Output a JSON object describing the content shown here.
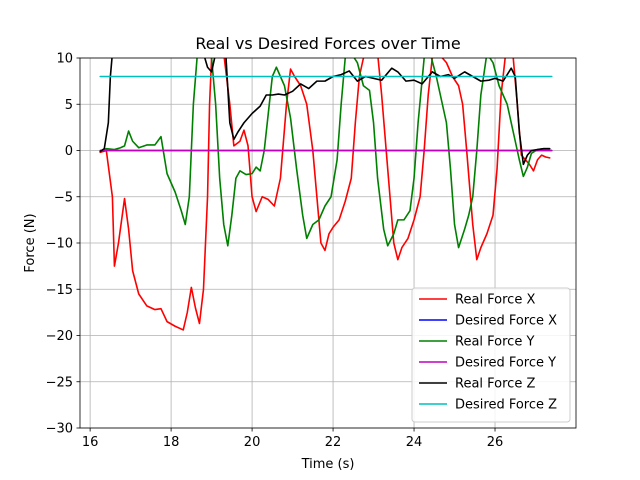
{
  "chart_data": {
    "type": "line",
    "title": "Real vs Desired Forces over Time",
    "xlabel": "Time (s)",
    "ylabel": "Force (N)",
    "xlim": [
      15.75,
      28.0
    ],
    "ylim": [
      -30,
      10
    ],
    "xticks": [
      16,
      18,
      20,
      22,
      24,
      26
    ],
    "yticks": [
      -30,
      -25,
      -20,
      -15,
      -10,
      -5,
      0,
      5,
      10
    ],
    "grid": true,
    "legend_position": "lower-right",
    "series": [
      {
        "name": "Real Force X",
        "color": "#ff0000",
        "points": [
          [
            16.25,
            -0.2
          ],
          [
            16.4,
            0.0
          ],
          [
            16.55,
            -5.0
          ],
          [
            16.6,
            -12.5
          ],
          [
            16.7,
            -10.0
          ],
          [
            16.85,
            -5.2
          ],
          [
            16.95,
            -8.5
          ],
          [
            17.05,
            -13.0
          ],
          [
            17.2,
            -15.5
          ],
          [
            17.4,
            -16.8
          ],
          [
            17.6,
            -17.2
          ],
          [
            17.75,
            -17.1
          ],
          [
            17.9,
            -18.5
          ],
          [
            18.1,
            -19.0
          ],
          [
            18.3,
            -19.4
          ],
          [
            18.4,
            -17.5
          ],
          [
            18.5,
            -14.8
          ],
          [
            18.6,
            -17.0
          ],
          [
            18.7,
            -18.7
          ],
          [
            18.8,
            -15.0
          ],
          [
            18.9,
            -5.0
          ],
          [
            18.95,
            5.0
          ],
          [
            19.0,
            10.0
          ],
          [
            19.1,
            10.5
          ],
          [
            19.2,
            10.5
          ],
          [
            19.3,
            10.5
          ],
          [
            19.45,
            5.0
          ],
          [
            19.55,
            0.5
          ],
          [
            19.7,
            1.0
          ],
          [
            19.8,
            2.2
          ],
          [
            19.9,
            0.5
          ],
          [
            20.0,
            -5.0
          ],
          [
            20.1,
            -6.6
          ],
          [
            20.25,
            -5.0
          ],
          [
            20.4,
            -5.3
          ],
          [
            20.55,
            -6.0
          ],
          [
            20.7,
            -3.0
          ],
          [
            20.85,
            5.0
          ],
          [
            20.95,
            8.8
          ],
          [
            21.05,
            8.0
          ],
          [
            21.2,
            7.0
          ],
          [
            21.35,
            5.0
          ],
          [
            21.5,
            0.0
          ],
          [
            21.6,
            -5.0
          ],
          [
            21.7,
            -10.0
          ],
          [
            21.8,
            -10.8
          ],
          [
            21.9,
            -9.0
          ],
          [
            22.0,
            -8.3
          ],
          [
            22.15,
            -7.5
          ],
          [
            22.3,
            -5.5
          ],
          [
            22.45,
            -3.0
          ],
          [
            22.55,
            3.0
          ],
          [
            22.65,
            8.0
          ],
          [
            22.75,
            10.0
          ],
          [
            22.9,
            10.5
          ],
          [
            23.1,
            10.5
          ],
          [
            23.2,
            6.0
          ],
          [
            23.35,
            -2.0
          ],
          [
            23.5,
            -10.0
          ],
          [
            23.6,
            -11.8
          ],
          [
            23.7,
            -10.5
          ],
          [
            23.85,
            -9.5
          ],
          [
            24.0,
            -7.5
          ],
          [
            24.15,
            -5.0
          ],
          [
            24.25,
            0.0
          ],
          [
            24.35,
            6.0
          ],
          [
            24.45,
            10.0
          ],
          [
            24.6,
            10.5
          ],
          [
            24.8,
            9.5
          ],
          [
            24.95,
            8.0
          ],
          [
            25.1,
            7.0
          ],
          [
            25.2,
            5.0
          ],
          [
            25.3,
            0.0
          ],
          [
            25.45,
            -8.0
          ],
          [
            25.55,
            -11.8
          ],
          [
            25.65,
            -10.5
          ],
          [
            25.8,
            -9.0
          ],
          [
            25.95,
            -7.0
          ],
          [
            26.05,
            -2.0
          ],
          [
            26.15,
            6.0
          ],
          [
            26.25,
            10.0
          ],
          [
            26.35,
            10.5
          ],
          [
            26.45,
            10.0
          ],
          [
            26.55,
            5.0
          ],
          [
            26.65,
            -0.5
          ],
          [
            26.75,
            -1.0
          ],
          [
            26.85,
            -1.5
          ],
          [
            26.95,
            -2.2
          ],
          [
            27.05,
            -1.0
          ],
          [
            27.15,
            -0.5
          ],
          [
            27.25,
            -0.7
          ],
          [
            27.35,
            -0.8
          ]
        ]
      },
      {
        "name": "Desired Force X",
        "color": "#0000ff",
        "points": [
          [
            16.25,
            0.0
          ],
          [
            27.4,
            0.0
          ]
        ]
      },
      {
        "name": "Real Force Y",
        "color": "#008000",
        "points": [
          [
            16.25,
            -0.1
          ],
          [
            16.4,
            0.2
          ],
          [
            16.6,
            0.1
          ],
          [
            16.75,
            0.3
          ],
          [
            16.85,
            0.5
          ],
          [
            16.95,
            2.1
          ],
          [
            17.05,
            1.0
          ],
          [
            17.2,
            0.3
          ],
          [
            17.4,
            0.6
          ],
          [
            17.6,
            0.6
          ],
          [
            17.75,
            1.5
          ],
          [
            17.9,
            -2.5
          ],
          [
            18.1,
            -4.5
          ],
          [
            18.25,
            -6.5
          ],
          [
            18.35,
            -8.0
          ],
          [
            18.45,
            -5.0
          ],
          [
            18.55,
            5.0
          ],
          [
            18.65,
            10.5
          ],
          [
            18.9,
            10.5
          ],
          [
            19.0,
            10.0
          ],
          [
            19.1,
            5.0
          ],
          [
            19.2,
            -3.0
          ],
          [
            19.3,
            -8.0
          ],
          [
            19.4,
            -10.3
          ],
          [
            19.5,
            -7.0
          ],
          [
            19.6,
            -3.0
          ],
          [
            19.7,
            -2.2
          ],
          [
            19.85,
            -2.6
          ],
          [
            20.0,
            -2.5
          ],
          [
            20.1,
            -1.8
          ],
          [
            20.2,
            -2.2
          ],
          [
            20.3,
            0.0
          ],
          [
            20.4,
            4.0
          ],
          [
            20.5,
            8.0
          ],
          [
            20.6,
            9.0
          ],
          [
            20.8,
            7.0
          ],
          [
            20.95,
            3.5
          ],
          [
            21.1,
            -2.0
          ],
          [
            21.25,
            -7.0
          ],
          [
            21.35,
            -9.5
          ],
          [
            21.5,
            -8.0
          ],
          [
            21.65,
            -7.5
          ],
          [
            21.8,
            -6.0
          ],
          [
            21.95,
            -5.0
          ],
          [
            22.1,
            -1.0
          ],
          [
            22.2,
            5.0
          ],
          [
            22.3,
            10.0
          ],
          [
            22.45,
            10.5
          ],
          [
            22.6,
            9.5
          ],
          [
            22.75,
            7.0
          ],
          [
            22.9,
            6.5
          ],
          [
            23.0,
            3.0
          ],
          [
            23.1,
            -3.0
          ],
          [
            23.25,
            -8.5
          ],
          [
            23.35,
            -10.3
          ],
          [
            23.5,
            -9.0
          ],
          [
            23.6,
            -7.5
          ],
          [
            23.75,
            -7.5
          ],
          [
            23.9,
            -6.5
          ],
          [
            24.0,
            -3.0
          ],
          [
            24.1,
            3.0
          ],
          [
            24.25,
            10.0
          ],
          [
            24.4,
            10.5
          ],
          [
            24.55,
            8.0
          ],
          [
            24.7,
            5.0
          ],
          [
            24.8,
            3.0
          ],
          [
            24.9,
            -2.0
          ],
          [
            25.0,
            -8.0
          ],
          [
            25.1,
            -10.5
          ],
          [
            25.25,
            -8.5
          ],
          [
            25.35,
            -7.0
          ],
          [
            25.45,
            -5.0
          ],
          [
            25.55,
            0.0
          ],
          [
            25.65,
            6.0
          ],
          [
            25.8,
            10.5
          ],
          [
            25.95,
            9.5
          ],
          [
            26.1,
            7.0
          ],
          [
            26.3,
            5.0
          ],
          [
            26.45,
            2.0
          ],
          [
            26.6,
            -1.0
          ],
          [
            26.7,
            -2.8
          ],
          [
            26.8,
            -1.8
          ],
          [
            26.9,
            -0.3
          ],
          [
            27.05,
            0.1
          ],
          [
            27.2,
            0.2
          ],
          [
            27.35,
            0.2
          ]
        ]
      },
      {
        "name": "Desired Force Y",
        "color": "#bf00bf",
        "points": [
          [
            16.25,
            0.0
          ],
          [
            27.4,
            0.0
          ]
        ]
      },
      {
        "name": "Real Force Z",
        "color": "#000000",
        "points": [
          [
            16.25,
            -0.1
          ],
          [
            16.35,
            0.2
          ],
          [
            16.45,
            3.0
          ],
          [
            16.5,
            8.0
          ],
          [
            16.55,
            10.5
          ],
          [
            16.9,
            10.5
          ],
          [
            18.6,
            10.5
          ],
          [
            18.8,
            10.5
          ],
          [
            18.9,
            9.0
          ],
          [
            19.0,
            8.5
          ],
          [
            19.1,
            10.5
          ],
          [
            19.35,
            10.5
          ],
          [
            19.45,
            3.0
          ],
          [
            19.55,
            1.2
          ],
          [
            19.65,
            2.0
          ],
          [
            19.8,
            3.0
          ],
          [
            20.0,
            4.0
          ],
          [
            20.2,
            4.8
          ],
          [
            20.35,
            6.0
          ],
          [
            20.5,
            6.0
          ],
          [
            20.65,
            6.1
          ],
          [
            20.8,
            6.0
          ],
          [
            21.0,
            6.4
          ],
          [
            21.2,
            7.2
          ],
          [
            21.4,
            6.7
          ],
          [
            21.6,
            7.5
          ],
          [
            21.8,
            7.5
          ],
          [
            22.0,
            8.0
          ],
          [
            22.2,
            8.2
          ],
          [
            22.4,
            8.6
          ],
          [
            22.6,
            7.5
          ],
          [
            22.8,
            8.0
          ],
          [
            23.0,
            7.8
          ],
          [
            23.2,
            7.6
          ],
          [
            23.45,
            8.9
          ],
          [
            23.6,
            8.5
          ],
          [
            23.8,
            7.5
          ],
          [
            24.0,
            7.6
          ],
          [
            24.2,
            7.2
          ],
          [
            24.45,
            8.5
          ],
          [
            24.65,
            8.0
          ],
          [
            24.85,
            8.2
          ],
          [
            25.0,
            7.8
          ],
          [
            25.25,
            8.5
          ],
          [
            25.45,
            8.0
          ],
          [
            25.65,
            7.5
          ],
          [
            25.85,
            7.6
          ],
          [
            26.0,
            7.8
          ],
          [
            26.2,
            7.5
          ],
          [
            26.4,
            8.9
          ],
          [
            26.5,
            8.0
          ],
          [
            26.6,
            2.0
          ],
          [
            26.7,
            -1.5
          ],
          [
            26.8,
            -0.5
          ],
          [
            26.9,
            0.0
          ],
          [
            27.05,
            0.1
          ],
          [
            27.2,
            0.2
          ],
          [
            27.35,
            0.2
          ]
        ]
      },
      {
        "name": "Desired Force Z",
        "color": "#00bfbf",
        "points": [
          [
            16.25,
            8.0
          ],
          [
            27.4,
            8.0
          ]
        ]
      }
    ]
  }
}
